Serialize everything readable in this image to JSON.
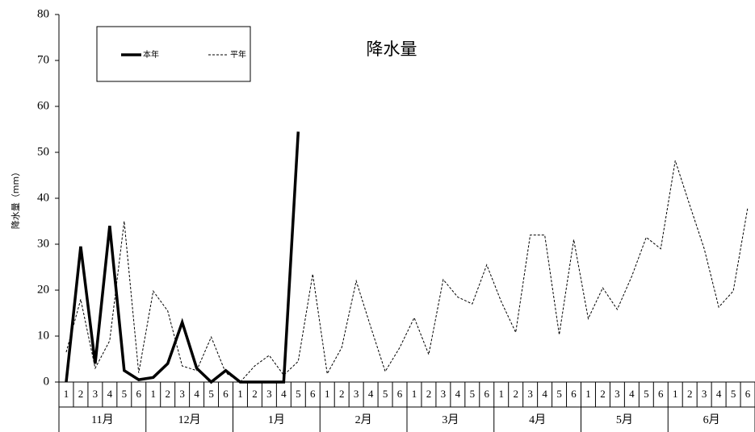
{
  "chart_data": {
    "type": "line",
    "title": "降水量",
    "y_label": "降水量（mm）",
    "categories": [
      "1",
      "2",
      "3",
      "4",
      "5",
      "6",
      "1",
      "2",
      "3",
      "4",
      "5",
      "6",
      "1",
      "2",
      "3",
      "4",
      "5",
      "6",
      "1",
      "2",
      "3",
      "4",
      "5",
      "6",
      "1",
      "2",
      "3",
      "4",
      "5",
      "6",
      "1",
      "2",
      "3",
      "4",
      "5",
      "6",
      "1",
      "2",
      "3",
      "4",
      "5",
      "6",
      "1",
      "2",
      "3",
      "4",
      "5",
      "6"
    ],
    "groups": [
      "11月",
      "12月",
      "1月",
      "2月",
      "3月",
      "4月",
      "5月",
      "6月"
    ],
    "series": [
      {
        "name": "本年",
        "color": "#000000",
        "style": "solid",
        "values": [
          0,
          29.5,
          4,
          34,
          2.5,
          0.5,
          1,
          4,
          13,
          3,
          0,
          2.5,
          0,
          0,
          0,
          0,
          54.5,
          null,
          null,
          null,
          null,
          null,
          null,
          null,
          null,
          null,
          null,
          null,
          null,
          null,
          null,
          null,
          null,
          null,
          null,
          null,
          null,
          null,
          null,
          null,
          null,
          null,
          null,
          null,
          null,
          null,
          null,
          null
        ]
      },
      {
        "name": "平年",
        "color": "#000000",
        "style": "dashed",
        "values": [
          6.5,
          18,
          3,
          9,
          35,
          2,
          19.8,
          15.5,
          3.5,
          2.5,
          9.8,
          2,
          0,
          3.5,
          5.8,
          1.5,
          4.5,
          23.5,
          1.8,
          7.5,
          22,
          12,
          2.3,
          7.5,
          14,
          6,
          22.3,
          18.5,
          17,
          25.5,
          17.5,
          10.8,
          32,
          32,
          10.3,
          31,
          13.8,
          20.5,
          15.8,
          23,
          31.5,
          29,
          48.2,
          38.5,
          29,
          16.3,
          19.8,
          38
        ]
      }
    ],
    "ylim": [
      0,
      80
    ],
    "yticks": [
      0,
      10,
      20,
      30,
      40,
      50,
      60,
      70,
      80
    ],
    "grid": false
  }
}
